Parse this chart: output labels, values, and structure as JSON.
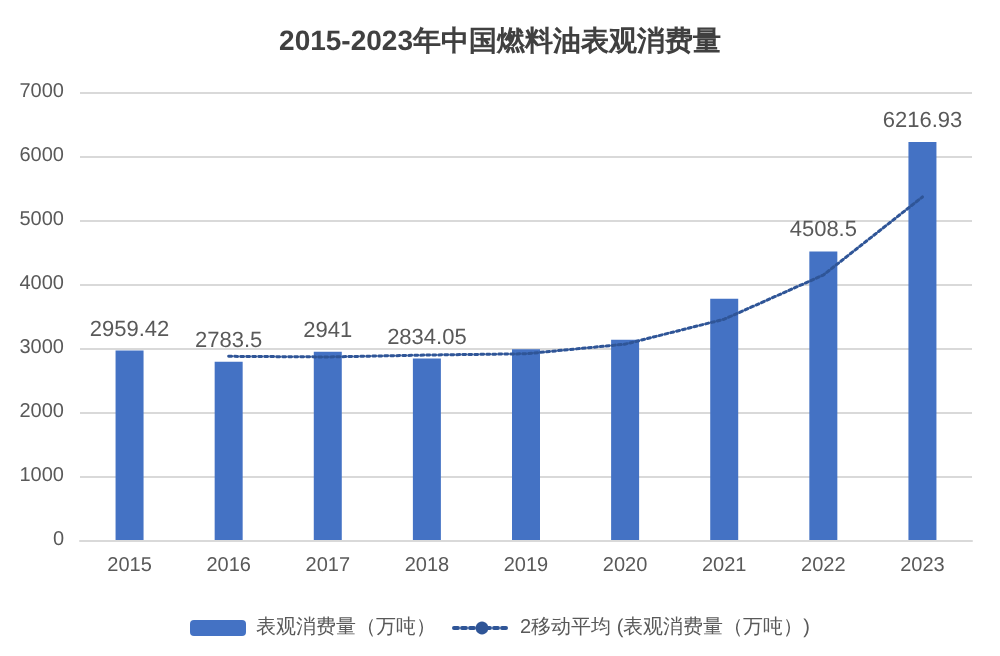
{
  "chart_data": {
    "type": "bar",
    "title": "2015-2023年中国燃料油表观消费量",
    "categories": [
      "2015",
      "2016",
      "2017",
      "2018",
      "2019",
      "2020",
      "2021",
      "2022",
      "2023"
    ],
    "series": [
      {
        "name": "表观消费量（万吨）",
        "color": "#4472c4",
        "values": [
          2959.42,
          2783.5,
          2941,
          2834.05,
          2980,
          3130,
          3770,
          4508.5,
          6216.93
        ],
        "value_labels": [
          "2959.42",
          "2783.5",
          "2941",
          "2834.05",
          null,
          null,
          null,
          "4508.5",
          "6216.93"
        ]
      },
      {
        "name": "2移动平均 (表观消费量（万吨）)",
        "type": "line",
        "color": "#2f5597",
        "line_style": "dotted",
        "marker": "none",
        "values": [
          null,
          2870,
          2860,
          2890,
          2910,
          3060,
          3450,
          4140,
          5360
        ]
      }
    ],
    "ylim": [
      0,
      7000
    ],
    "yticks": [
      0,
      1000,
      2000,
      3000,
      4000,
      5000,
      6000,
      7000
    ],
    "grid": "y",
    "legend": "bottom"
  }
}
